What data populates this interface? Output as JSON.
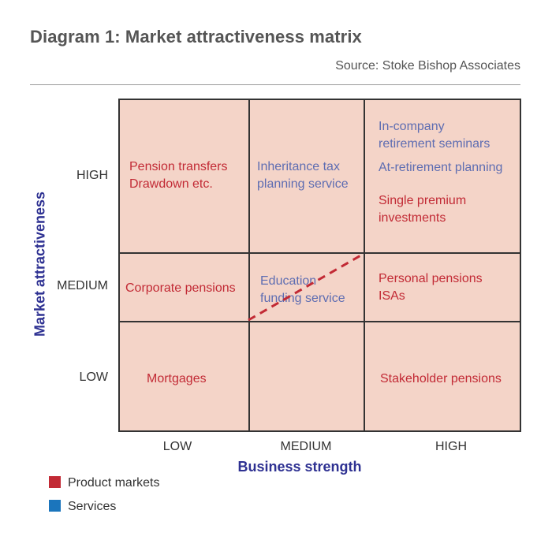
{
  "title": "Diagram 1: Market attractiveness matrix",
  "source": "Source: Stoke Bishop Associates",
  "y_axis": {
    "title": "Market attractiveness",
    "levels": [
      "HIGH",
      "MEDIUM",
      "LOW"
    ]
  },
  "x_axis": {
    "title": "Business strength",
    "levels": [
      "LOW",
      "MEDIUM",
      "HIGH"
    ]
  },
  "cells": {
    "high_low": [
      "Pension transfers",
      "Drawdown etc."
    ],
    "high_medium": [
      "Inheritance tax",
      "planning service"
    ],
    "high_high": {
      "services": [
        "In-company",
        "retirement seminars",
        "At-retirement planning"
      ],
      "products": [
        "Single premium",
        "investments"
      ]
    },
    "medium_low": [
      "Corporate pensions"
    ],
    "medium_medium": [
      "Education",
      "funding service"
    ],
    "medium_high": [
      "Personal pensions",
      "ISAs"
    ],
    "low_low": [
      "Mortgages"
    ],
    "low_high": [
      "Stakeholder pensions"
    ]
  },
  "legend": [
    {
      "label": "Product markets",
      "color": "#c22a35"
    },
    {
      "label": "Services",
      "color": "#1b75bc"
    }
  ],
  "colors": {
    "grid_fill": "#f4d4c8",
    "product_text": "#c22a35",
    "service_text": "#5e6db2",
    "axis_title": "#2e3192",
    "dashed_line": "#c22a35"
  }
}
